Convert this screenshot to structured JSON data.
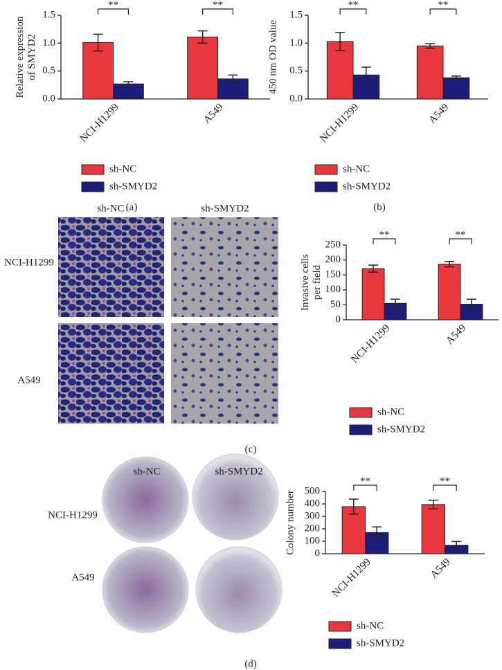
{
  "chart_data": [
    {
      "type": "bar",
      "ylabel": [
        "Relative expression",
        "of SMYD2"
      ],
      "categories": [
        "NCI-H1299",
        "A549"
      ],
      "series": [
        {
          "name": "sh-NC",
          "color": "#e8383d",
          "values": [
            1.01,
            1.11
          ],
          "errors": [
            0.15,
            0.11
          ]
        },
        {
          "name": "sh-SMYD2",
          "color": "#1c1c7a",
          "values": [
            0.27,
            0.36
          ],
          "errors": [
            0.04,
            0.07
          ]
        }
      ],
      "annotations": [
        "**",
        "**"
      ],
      "ylim": [
        0,
        1.5
      ],
      "yticks": [
        {
          "value": 0,
          "label": "0.0"
        },
        {
          "value": 0.5,
          "label": "0.5"
        },
        {
          "value": 1,
          "label": "1.0"
        },
        {
          "value": 1.5,
          "label": "1.5"
        }
      ]
    },
    {
      "type": "bar",
      "ylabel": [
        "450 nm OD value"
      ],
      "categories": [
        "NCI-H1299",
        "A549"
      ],
      "series": [
        {
          "name": "sh-NC",
          "color": "#e8383d",
          "values": [
            1.03,
            0.95
          ],
          "errors": [
            0.16,
            0.04
          ]
        },
        {
          "name": "sh-SMYD2",
          "color": "#1c1c7a",
          "values": [
            0.43,
            0.38
          ],
          "errors": [
            0.14,
            0.03
          ]
        }
      ],
      "annotations": [
        "**",
        "**"
      ],
      "ylim": [
        0,
        1.5
      ],
      "yticks": [
        {
          "value": 0,
          "label": "0.0"
        },
        {
          "value": 0.5,
          "label": "0.5"
        },
        {
          "value": 1,
          "label": "1.0"
        },
        {
          "value": 1.5,
          "label": "1.5"
        }
      ]
    },
    {
      "type": "bar",
      "ylabel": [
        "Invasive cells",
        "per field"
      ],
      "categories": [
        "NCI-H1299",
        "A549"
      ],
      "series": [
        {
          "name": "sh-NC",
          "color": "#e8383d",
          "values": [
            171,
            186
          ],
          "errors": [
            12,
            9
          ]
        },
        {
          "name": "sh-SMYD2",
          "color": "#1c1c7a",
          "values": [
            55,
            52
          ],
          "errors": [
            14,
            17
          ]
        }
      ],
      "annotations": [
        "**",
        "**"
      ],
      "ylim": [
        0,
        250
      ],
      "yticks": [
        0,
        50,
        100,
        150,
        200,
        250
      ]
    },
    {
      "type": "bar",
      "ylabel": [
        "Colony number"
      ],
      "categories": [
        "NCI-H1299",
        "A549"
      ],
      "series": [
        {
          "name": "sh-NC",
          "color": "#e8383d",
          "values": [
            378,
            395
          ],
          "errors": [
            60,
            35
          ]
        },
        {
          "name": "sh-SMYD2",
          "color": "#1c1c7a",
          "values": [
            170,
            68
          ],
          "errors": [
            45,
            30
          ]
        }
      ],
      "annotations": [
        "**",
        "**"
      ],
      "ylim": [
        0,
        500
      ],
      "yticks": [
        0,
        100,
        200,
        300,
        400,
        500
      ]
    }
  ],
  "figure": {
    "panel_labels": [
      "(a)",
      "(b)",
      "(c)",
      "(d)"
    ],
    "invasion_images": {
      "columns": [
        "sh-NC",
        "sh-SMYD2"
      ],
      "rows": [
        "NCI-H1299",
        "A549"
      ]
    },
    "colony_images": {
      "columns": [
        "sh-NC",
        "sh-SMYD2"
      ],
      "rows": [
        "NCI-H1299",
        "A549"
      ]
    }
  }
}
